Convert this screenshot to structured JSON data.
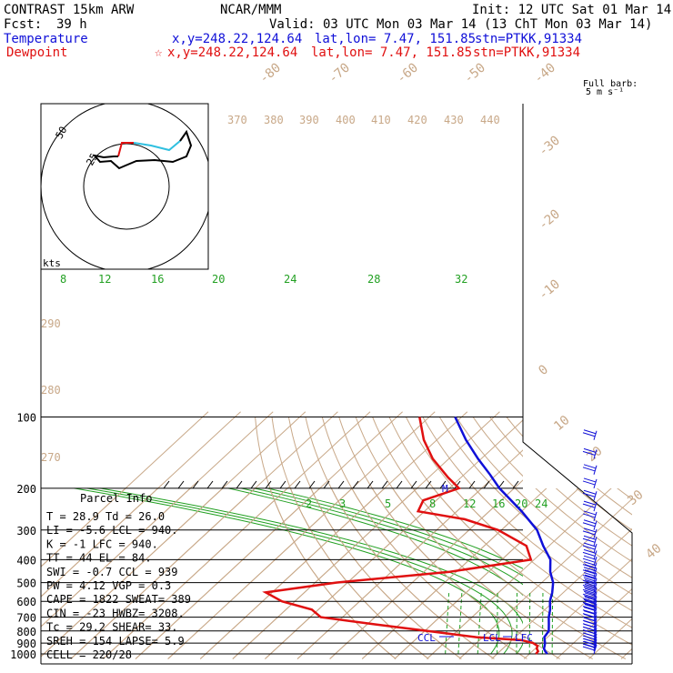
{
  "header": {
    "title": "CONTRAST 15km ARW",
    "source": "NCAR/MMM",
    "init": "Init: 12 UTC Sat 01 Mar 14",
    "fcst_label": "Fcst:",
    "fcst_value": "39 h",
    "valid": "Valid: 03 UTC Mon 03 Mar 14 (13 ChT Mon 03 Mar 14)",
    "temp_label": "Temperature",
    "temp_xy": "x,y=248.22,124.64",
    "temp_latlon": "lat,lon=  7.47, 151.85",
    "temp_stn": "stn=PTKK,91334",
    "dew_label": "Dewpoint",
    "dew_star": "☆",
    "dew_xy": "x,y=248.22,124.64",
    "dew_latlon": "lat,lon=  7.47, 151.85",
    "dew_stn": "stn=PTKK,91334"
  },
  "colors": {
    "temperature": "#1010d8",
    "dewpoint": "#e01010",
    "dry_adiabat": "#c8a888",
    "moist_adiabat": "#22a022",
    "mixing_ratio": "#22a022",
    "isobar": "#000000",
    "hodo_line1": "#e01010",
    "hodo_line2": "#30c0e0",
    "hodo_line3": "#000000"
  },
  "chart_data": {
    "type": "skew-t",
    "pressure_ticks": [
      "100",
      "200",
      "300",
      "400",
      "500",
      "600",
      "700",
      "800",
      "900",
      "1000"
    ],
    "temperature_ticks": [
      "-80",
      "-70",
      "-60",
      "-50",
      "-40",
      "-30",
      "-20",
      "-10",
      "0",
      "10",
      "20",
      "30",
      "40"
    ],
    "theta_labels": [
      "370",
      "380",
      "390",
      "400",
      "410",
      "420",
      "430",
      "440",
      "290",
      "280",
      "270"
    ],
    "moist_labels": [
      "8",
      "12",
      "16",
      "20",
      "24",
      "28",
      "32"
    ],
    "mixing_ratio_labels": [
      "2",
      "3",
      "5",
      "8",
      "12",
      "16",
      "20",
      "24"
    ],
    "mixing_marker": "M",
    "temperature_profile": [
      [
        1000,
        25.5
      ],
      [
        975,
        24.0
      ],
      [
        950,
        22.7
      ],
      [
        925,
        22.0
      ],
      [
        900,
        21.2
      ],
      [
        850,
        19.0
      ],
      [
        800,
        18.3
      ],
      [
        750,
        16.1
      ],
      [
        700,
        13.7
      ],
      [
        650,
        11.6
      ],
      [
        600,
        8.8
      ],
      [
        550,
        6.5
      ],
      [
        500,
        3.5
      ],
      [
        450,
        -1.0
      ],
      [
        400,
        -5.0
      ],
      [
        350,
        -11.8
      ],
      [
        300,
        -19.0
      ],
      [
        250,
        -30.0
      ],
      [
        200,
        -44.5
      ],
      [
        175,
        -52.0
      ],
      [
        150,
        -61.0
      ],
      [
        125,
        -71.0
      ],
      [
        100,
        -82.0
      ]
    ],
    "dewpoint_profile": [
      [
        1000,
        22.0
      ],
      [
        975,
        21.8
      ],
      [
        950,
        20.5
      ],
      [
        925,
        19.8
      ],
      [
        900,
        17.5
      ],
      [
        875,
        13.0
      ],
      [
        850,
        -2.0
      ],
      [
        800,
        -19.2
      ],
      [
        750,
        -37.6
      ],
      [
        700,
        -56.7
      ],
      [
        650,
        -62.0
      ],
      [
        600,
        -74.0
      ],
      [
        550,
        -82.0
      ],
      [
        500,
        -63.5
      ],
      [
        450,
        -32.0
      ],
      [
        400,
        -11.0
      ],
      [
        350,
        -17.0
      ],
      [
        300,
        -31.0
      ],
      [
        270,
        -45.0
      ],
      [
        250,
        -62.0
      ],
      [
        225,
        -64.0
      ],
      [
        200,
        -57.0
      ],
      [
        180,
        -64.0
      ],
      [
        150,
        -75.0
      ],
      [
        125,
        -84.0
      ],
      [
        100,
        -93.0
      ]
    ],
    "wind_units": "kts",
    "wind_barb_title": "Full barb:",
    "wind_barb_unit": "5 m s⁻¹",
    "hodograph_ring_labels": [
      "50",
      "25"
    ],
    "parcel_title": "Parcel Info",
    "parcel_rows": [
      "T   =   28.9  Td =  26.0",
      "LI  =   -5.6  LCL  =  940.",
      "K   =     -1  LFC  =  940.",
      "TT  =     44  EL   =   84.",
      "SWI  =   -0.7  CCL  =  939",
      "PW  =   4.12  VGP  =   0.3",
      "CAPE =  1822  SWEAT=   389",
      "CIN  =   -23  HWBZ=  3208.",
      "Tc  =   29.2  SHEAR=   33.",
      "SREH =   154  LAPSE=   5.9",
      "CELL = 220/28"
    ],
    "level_labels": [
      "CCL",
      "LCL",
      "LFC"
    ]
  }
}
